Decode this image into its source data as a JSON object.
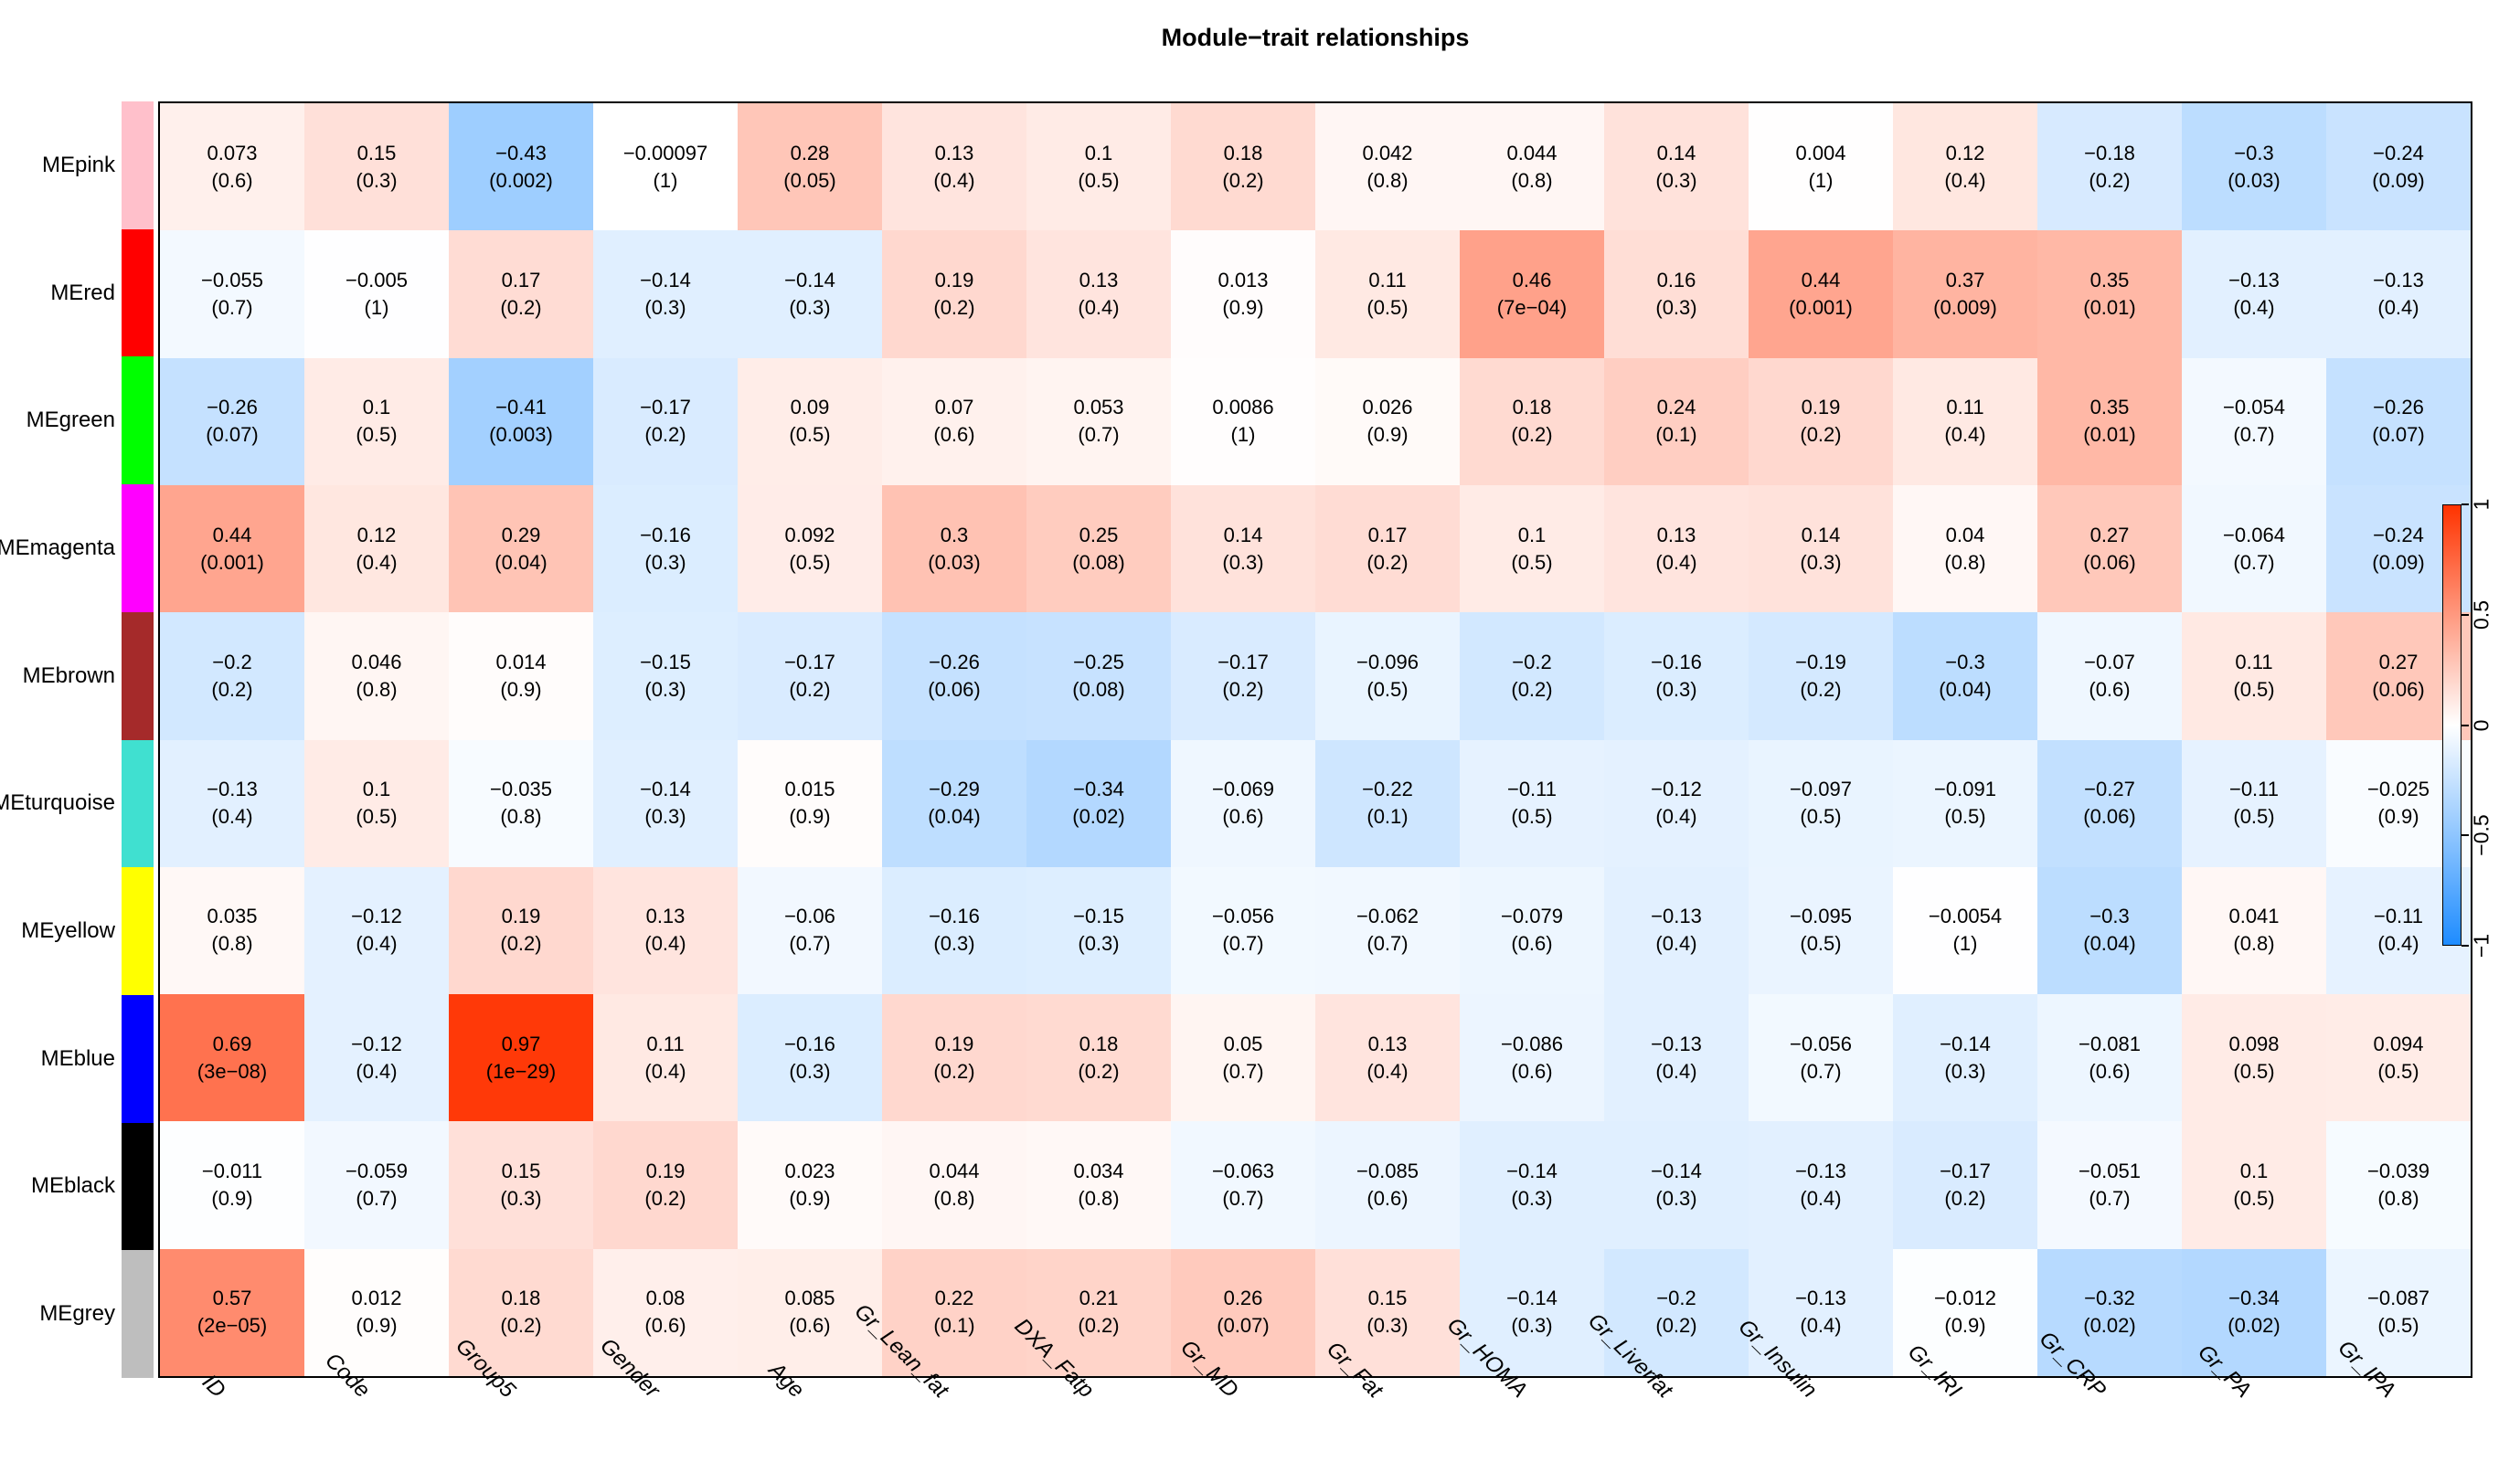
{
  "title": "Module−trait relationships",
  "chart_data": {
    "type": "heatmap",
    "title": "Module−trait relationships",
    "cell_format": "correlation with (p-value) below",
    "columns": [
      "ID",
      "Code",
      "Group5",
      "Gender",
      "Age",
      "Gr_Lean_fat",
      "DXA_Fatp",
      "Gr_MD",
      "Gr_Fat",
      "Gr_HOMA",
      "Gr_Liverfat",
      "Gr_Insulin",
      "Gr_IRI",
      "Gr_CRP",
      "Gr_PA",
      "Gr_IPA"
    ],
    "rows": [
      {
        "label": "MEpink",
        "color": "#FFC0CB",
        "values": [
          0.073,
          0.15,
          -0.43,
          -0.00097,
          0.28,
          0.13,
          0.1,
          0.18,
          0.042,
          0.044,
          0.14,
          0.004,
          0.12,
          -0.18,
          -0.3,
          -0.24
        ],
        "pvalues": [
          "(0.6)",
          "(0.3)",
          "(0.002)",
          "(1)",
          "(0.05)",
          "(0.4)",
          "(0.5)",
          "(0.2)",
          "(0.8)",
          "(0.8)",
          "(0.3)",
          "(1)",
          "(0.4)",
          "(0.2)",
          "(0.03)",
          "(0.09)"
        ]
      },
      {
        "label": "MEred",
        "color": "#FF0000",
        "values": [
          -0.055,
          -0.005,
          0.17,
          -0.14,
          -0.14,
          0.19,
          0.13,
          0.013,
          0.11,
          0.46,
          0.16,
          0.44,
          0.37,
          0.35,
          -0.13,
          -0.13
        ],
        "pvalues": [
          "(0.7)",
          "(1)",
          "(0.2)",
          "(0.3)",
          "(0.3)",
          "(0.2)",
          "(0.4)",
          "(0.9)",
          "(0.5)",
          "(7e−04)",
          "(0.3)",
          "(0.001)",
          "(0.009)",
          "(0.01)",
          "(0.4)",
          "(0.4)"
        ]
      },
      {
        "label": "MEgreen",
        "color": "#00FF00",
        "values": [
          -0.26,
          0.1,
          -0.41,
          -0.17,
          0.09,
          0.07,
          0.053,
          0.0086,
          0.026,
          0.18,
          0.24,
          0.19,
          0.11,
          0.35,
          -0.054,
          -0.26
        ],
        "pvalues": [
          "(0.07)",
          "(0.5)",
          "(0.003)",
          "(0.2)",
          "(0.5)",
          "(0.6)",
          "(0.7)",
          "(1)",
          "(0.9)",
          "(0.2)",
          "(0.1)",
          "(0.2)",
          "(0.4)",
          "(0.01)",
          "(0.7)",
          "(0.07)"
        ]
      },
      {
        "label": "MEmagenta",
        "color": "#FF00FF",
        "values": [
          0.44,
          0.12,
          0.29,
          -0.16,
          0.092,
          0.3,
          0.25,
          0.14,
          0.17,
          0.1,
          0.13,
          0.14,
          0.04,
          0.27,
          -0.064,
          -0.24
        ],
        "pvalues": [
          "(0.001)",
          "(0.4)",
          "(0.04)",
          "(0.3)",
          "(0.5)",
          "(0.03)",
          "(0.08)",
          "(0.3)",
          "(0.2)",
          "(0.5)",
          "(0.4)",
          "(0.3)",
          "(0.8)",
          "(0.06)",
          "(0.7)",
          "(0.09)"
        ]
      },
      {
        "label": "MEbrown",
        "color": "#A52A2A",
        "values": [
          -0.2,
          0.046,
          0.014,
          -0.15,
          -0.17,
          -0.26,
          -0.25,
          -0.17,
          -0.096,
          -0.2,
          -0.16,
          -0.19,
          -0.3,
          -0.07,
          0.11,
          0.27
        ],
        "pvalues": [
          "(0.2)",
          "(0.8)",
          "(0.9)",
          "(0.3)",
          "(0.2)",
          "(0.06)",
          "(0.08)",
          "(0.2)",
          "(0.5)",
          "(0.2)",
          "(0.3)",
          "(0.2)",
          "(0.04)",
          "(0.6)",
          "(0.5)",
          "(0.06)"
        ]
      },
      {
        "label": "MEturquoise",
        "color": "#40E0D0",
        "values": [
          -0.13,
          0.1,
          -0.035,
          -0.14,
          0.015,
          -0.29,
          -0.34,
          -0.069,
          -0.22,
          -0.11,
          -0.12,
          -0.097,
          -0.091,
          -0.27,
          -0.11,
          -0.025
        ],
        "pvalues": [
          "(0.4)",
          "(0.5)",
          "(0.8)",
          "(0.3)",
          "(0.9)",
          "(0.04)",
          "(0.02)",
          "(0.6)",
          "(0.1)",
          "(0.5)",
          "(0.4)",
          "(0.5)",
          "(0.5)",
          "(0.06)",
          "(0.5)",
          "(0.9)"
        ]
      },
      {
        "label": "MEyellow",
        "color": "#FFFF00",
        "values": [
          0.035,
          -0.12,
          0.19,
          0.13,
          -0.06,
          -0.16,
          -0.15,
          -0.056,
          -0.062,
          -0.079,
          -0.13,
          -0.095,
          -0.0054,
          -0.3,
          0.041,
          -0.11
        ],
        "pvalues": [
          "(0.8)",
          "(0.4)",
          "(0.2)",
          "(0.4)",
          "(0.7)",
          "(0.3)",
          "(0.3)",
          "(0.7)",
          "(0.7)",
          "(0.6)",
          "(0.4)",
          "(0.5)",
          "(1)",
          "(0.04)",
          "(0.8)",
          "(0.4)"
        ]
      },
      {
        "label": "MEblue",
        "color": "#0000FF",
        "values": [
          0.69,
          -0.12,
          0.97,
          0.11,
          -0.16,
          0.19,
          0.18,
          0.05,
          0.13,
          -0.086,
          -0.13,
          -0.056,
          -0.14,
          -0.081,
          0.098,
          0.094
        ],
        "pvalues": [
          "(3e−08)",
          "(0.4)",
          "(1e−29)",
          "(0.4)",
          "(0.3)",
          "(0.2)",
          "(0.2)",
          "(0.7)",
          "(0.4)",
          "(0.6)",
          "(0.4)",
          "(0.7)",
          "(0.3)",
          "(0.6)",
          "(0.5)",
          "(0.5)"
        ]
      },
      {
        "label": "MEblack",
        "color": "#000000",
        "values": [
          -0.011,
          -0.059,
          0.15,
          0.19,
          0.023,
          0.044,
          0.034,
          -0.063,
          -0.085,
          -0.14,
          -0.14,
          -0.13,
          -0.17,
          -0.051,
          0.1,
          -0.039
        ],
        "pvalues": [
          "(0.9)",
          "(0.7)",
          "(0.3)",
          "(0.2)",
          "(0.9)",
          "(0.8)",
          "(0.8)",
          "(0.7)",
          "(0.6)",
          "(0.3)",
          "(0.3)",
          "(0.4)",
          "(0.2)",
          "(0.7)",
          "(0.5)",
          "(0.8)"
        ]
      },
      {
        "label": "MEgrey",
        "color": "#BEBEBE",
        "values": [
          0.57,
          0.012,
          0.18,
          0.08,
          0.085,
          0.22,
          0.21,
          0.26,
          0.15,
          -0.14,
          -0.2,
          -0.13,
          -0.012,
          -0.32,
          -0.34,
          -0.087
        ],
        "pvalues": [
          "(2e−05)",
          "(0.9)",
          "(0.2)",
          "(0.6)",
          "(0.6)",
          "(0.1)",
          "(0.2)",
          "(0.07)",
          "(0.3)",
          "(0.3)",
          "(0.2)",
          "(0.4)",
          "(0.9)",
          "(0.02)",
          "(0.02)",
          "(0.5)"
        ]
      }
    ],
    "color_scale": {
      "min": -1,
      "mid": 0,
      "max": 1,
      "min_color": "#1E8CFF",
      "mid_color": "#FFFFFF",
      "max_color": "#FF3300"
    },
    "legend_ticks": [
      "1",
      "0.5",
      "0",
      "−0.5",
      "−1"
    ],
    "legend_tick_values": [
      1,
      0.5,
      0,
      -0.5,
      -1
    ],
    "layout_hints": {
      "grid": false,
      "legend_position": "right",
      "x_label_angle": 45,
      "x_labels_italic": true
    }
  }
}
